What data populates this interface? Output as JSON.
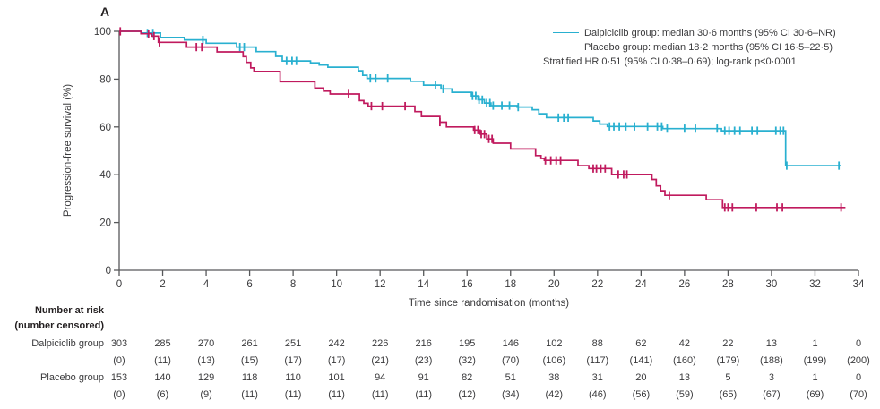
{
  "panel_label": "A",
  "colors": {
    "dalpiciclib": "#29b0d0",
    "placebo": "#c01a5e",
    "axis": "#57585a",
    "text": "#3a3a3c"
  },
  "legend": {
    "dalpiciclib_label": "Dalpiciclib group: median 30·6 months (95% CI 30·6–NR)",
    "placebo_label": "Placebo group: median 18·2 months (95% CI 16·5–22·5)",
    "stratified_line": "Stratified HR 0·51 (95% CI 0·38–0·69); log-rank p<0·0001"
  },
  "chart_data": {
    "type": "line",
    "subtype": "kaplan-meier-step",
    "xlabel": "Time since randomisation (months)",
    "ylabel": "Progression-free survival (%)",
    "xlim": [
      0,
      34
    ],
    "ylim": [
      0,
      100
    ],
    "xticks": [
      0,
      2,
      4,
      6,
      8,
      10,
      12,
      14,
      16,
      18,
      20,
      22,
      24,
      26,
      28,
      30,
      32,
      34
    ],
    "yticks": [
      0,
      20,
      40,
      60,
      80,
      100
    ],
    "grid": false,
    "legend_position": "top-right",
    "series": [
      {
        "name": "Dalpiciclib group",
        "color": "#29b0d0",
        "end_month": 33.2,
        "points": [
          [
            0,
            100
          ],
          [
            1.0,
            99.3
          ],
          [
            1.9,
            97.4
          ],
          [
            3.0,
            96.4
          ],
          [
            4.0,
            95.0
          ],
          [
            5.4,
            93.4
          ],
          [
            6.3,
            91.5
          ],
          [
            7.2,
            89.5
          ],
          [
            7.5,
            87.6
          ],
          [
            8.8,
            86.8
          ],
          [
            9.2,
            85.9
          ],
          [
            9.6,
            85.0
          ],
          [
            11.0,
            83.5
          ],
          [
            11.2,
            81.6
          ],
          [
            11.4,
            80.3
          ],
          [
            13.4,
            79.1
          ],
          [
            14.0,
            77.5
          ],
          [
            14.8,
            75.9
          ],
          [
            15.3,
            74.5
          ],
          [
            16.2,
            73.0
          ],
          [
            16.5,
            71.4
          ],
          [
            16.8,
            70.0
          ],
          [
            17.1,
            68.9
          ],
          [
            18.3,
            68.3
          ],
          [
            19.0,
            67.2
          ],
          [
            19.3,
            65.5
          ],
          [
            19.65,
            63.9
          ],
          [
            21.8,
            62.5
          ],
          [
            22.1,
            61.2
          ],
          [
            22.45,
            60.2
          ],
          [
            25.0,
            59.3
          ],
          [
            27.7,
            58.4
          ],
          [
            30.65,
            43.8
          ]
        ],
        "censor_months": [
          1.3,
          1.55,
          3.85,
          5.55,
          5.75,
          7.7,
          7.95,
          8.15,
          11.55,
          11.8,
          12.35,
          14.55,
          14.9,
          16.25,
          16.4,
          16.55,
          16.7,
          16.9,
          17.05,
          17.2,
          17.6,
          17.95,
          18.35,
          20.2,
          20.45,
          20.65,
          22.55,
          22.75,
          23.0,
          23.3,
          23.7,
          24.3,
          24.75,
          24.95,
          25.2,
          26.0,
          26.5,
          27.5,
          27.85,
          28.05,
          28.3,
          28.55,
          29.1,
          29.35,
          30.2,
          30.4,
          30.55,
          30.7,
          33.1
        ]
      },
      {
        "name": "Placebo group",
        "color": "#c01a5e",
        "end_month": 33.4,
        "points": [
          [
            0,
            100
          ],
          [
            1.0,
            99.0
          ],
          [
            1.5,
            98.0
          ],
          [
            1.8,
            95.4
          ],
          [
            3.1,
            93.4
          ],
          [
            4.5,
            91.4
          ],
          [
            5.7,
            89.4
          ],
          [
            5.85,
            87.0
          ],
          [
            6.05,
            84.7
          ],
          [
            6.2,
            83.2
          ],
          [
            7.4,
            78.9
          ],
          [
            9.0,
            76.3
          ],
          [
            9.4,
            75.0
          ],
          [
            9.7,
            73.8
          ],
          [
            11.05,
            71.0
          ],
          [
            11.25,
            69.9
          ],
          [
            11.45,
            68.7
          ],
          [
            13.6,
            66.4
          ],
          [
            13.9,
            64.4
          ],
          [
            14.75,
            62.0
          ],
          [
            15.05,
            60.0
          ],
          [
            16.3,
            58.7
          ],
          [
            16.6,
            57.0
          ],
          [
            16.9,
            55.0
          ],
          [
            17.2,
            53.2
          ],
          [
            18.0,
            50.8
          ],
          [
            19.15,
            48.0
          ],
          [
            19.4,
            46.8
          ],
          [
            19.55,
            46.0
          ],
          [
            21.1,
            43.8
          ],
          [
            21.6,
            42.6
          ],
          [
            22.65,
            40.1
          ],
          [
            24.5,
            38.0
          ],
          [
            24.7,
            35.3
          ],
          [
            24.9,
            33.3
          ],
          [
            25.1,
            31.4
          ],
          [
            27.0,
            29.5
          ],
          [
            27.75,
            26.3
          ]
        ],
        "censor_months": [
          0.05,
          1.35,
          1.6,
          1.85,
          3.55,
          3.8,
          10.55,
          11.6,
          12.1,
          13.15,
          14.75,
          16.35,
          16.5,
          16.65,
          16.8,
          17.0,
          17.15,
          19.6,
          19.85,
          20.1,
          20.3,
          21.8,
          21.95,
          22.15,
          22.35,
          22.95,
          23.2,
          23.35,
          25.3,
          27.85,
          28.0,
          28.2,
          29.3,
          30.25,
          30.5,
          33.2
        ]
      }
    ]
  },
  "risk_table": {
    "header_line1": "Number at risk",
    "header_line2": "(number censored)",
    "months": [
      0,
      2,
      4,
      6,
      8,
      10,
      12,
      14,
      16,
      18,
      20,
      22,
      24,
      26,
      28,
      30,
      32,
      34
    ],
    "rows": [
      {
        "label": "Dalpiciclib group",
        "at_risk": [
          303,
          285,
          270,
          261,
          251,
          242,
          226,
          216,
          195,
          146,
          102,
          88,
          62,
          42,
          22,
          13,
          1,
          0
        ],
        "censored": [
          "(0)",
          "(11)",
          "(13)",
          "(15)",
          "(17)",
          "(17)",
          "(21)",
          "(23)",
          "(32)",
          "(70)",
          "(106)",
          "(117)",
          "(141)",
          "(160)",
          "(179)",
          "(188)",
          "(199)",
          "(200)"
        ]
      },
      {
        "label": "Placebo group",
        "at_risk": [
          153,
          140,
          129,
          118,
          110,
          101,
          94,
          91,
          82,
          51,
          38,
          31,
          20,
          13,
          5,
          3,
          1,
          0
        ],
        "censored": [
          "(0)",
          "(6)",
          "(9)",
          "(11)",
          "(11)",
          "(11)",
          "(11)",
          "(11)",
          "(12)",
          "(34)",
          "(42)",
          "(46)",
          "(56)",
          "(59)",
          "(65)",
          "(67)",
          "(69)",
          "(70)"
        ]
      }
    ]
  }
}
